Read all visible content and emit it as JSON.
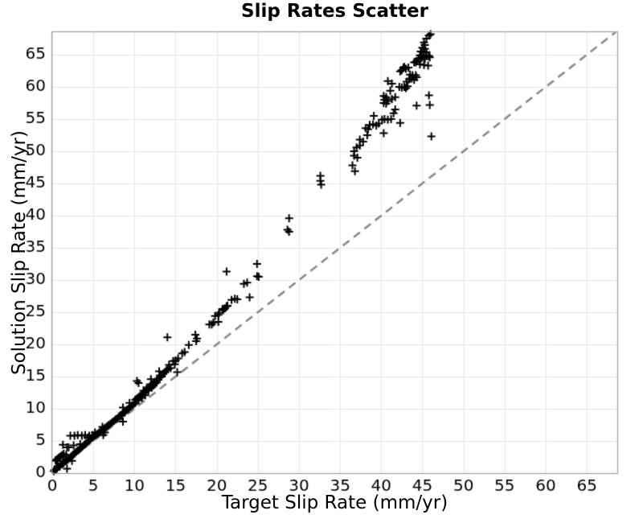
{
  "colors": {
    "background": "#ffffff",
    "grid": "#e7e7e7",
    "spine": "#9e9e9e",
    "identity_line": "#8a8a8a",
    "marker": "#000000",
    "text": "#000000"
  },
  "chart_data": {
    "type": "scatter",
    "title": "Slip Rates Scatter",
    "xlabel": "Target Slip Rate (mm/yr)",
    "ylabel": "Solution Slip Rate (mm/yr)",
    "xlim": [
      0,
      68.7
    ],
    "ylim": [
      0,
      68.5
    ],
    "xticks": [
      0,
      5,
      10,
      15,
      20,
      25,
      30,
      35,
      40,
      45,
      50,
      55,
      60,
      65
    ],
    "yticks": [
      0,
      5,
      10,
      15,
      20,
      25,
      30,
      35,
      40,
      45,
      50,
      55,
      60,
      65
    ],
    "grid": true,
    "legend": "none",
    "marker": "plus",
    "reference_line": {
      "kind": "y=x",
      "style": "dashed",
      "color": "#8a8a8a",
      "from": [
        0,
        0
      ],
      "to": [
        68.5,
        68.5
      ]
    },
    "points": [
      [
        0.2,
        0.3
      ],
      [
        0.3,
        0.5
      ],
      [
        0.5,
        0.6
      ],
      [
        0.6,
        0.8
      ],
      [
        0.7,
        1.1
      ],
      [
        0.9,
        1.0
      ],
      [
        1.0,
        1.3
      ],
      [
        1.2,
        1.4
      ],
      [
        1.4,
        1.6
      ],
      [
        1.5,
        1.8
      ],
      [
        1.7,
        1.9
      ],
      [
        1.9,
        2.1
      ],
      [
        2.1,
        2.3
      ],
      [
        2.3,
        2.5
      ],
      [
        2.5,
        2.8
      ],
      [
        0.4,
        2.0
      ],
      [
        0.5,
        1.9
      ],
      [
        0.6,
        2.2
      ],
      [
        0.8,
        2.4
      ],
      [
        1.0,
        2.6
      ],
      [
        1.2,
        2.8
      ],
      [
        1.4,
        3.0
      ],
      [
        1.3,
        2.6
      ],
      [
        1.7,
        2.8
      ],
      [
        2.4,
        1.9
      ],
      [
        1.8,
        0.7
      ],
      [
        1.3,
        4.4
      ],
      [
        1.8,
        4.0
      ],
      [
        2.0,
        4.0
      ],
      [
        2.6,
        4.3
      ],
      [
        2.2,
        5.8
      ],
      [
        2.7,
        5.8
      ],
      [
        3.1,
        5.9
      ],
      [
        3.6,
        5.8
      ],
      [
        4.0,
        5.9
      ],
      [
        4.5,
        5.8
      ],
      [
        4.9,
        5.9
      ],
      [
        2.7,
        3.1
      ],
      [
        2.9,
        3.3
      ],
      [
        3.1,
        3.5
      ],
      [
        3.3,
        3.7
      ],
      [
        3.5,
        3.9
      ],
      [
        3.7,
        4.2
      ],
      [
        3.9,
        4.4
      ],
      [
        4.1,
        4.6
      ],
      [
        4.3,
        4.9
      ],
      [
        4.5,
        5.1
      ],
      [
        4.7,
        5.3
      ],
      [
        4.9,
        5.5
      ],
      [
        5.1,
        5.7
      ],
      [
        5.3,
        5.9
      ],
      [
        5.5,
        6.1
      ],
      [
        5.7,
        6.3
      ],
      [
        5.9,
        6.5
      ],
      [
        6.1,
        6.7
      ],
      [
        6.3,
        6.9
      ],
      [
        3.4,
        4.5
      ],
      [
        4.3,
        5.5
      ],
      [
        5.2,
        6.3
      ],
      [
        6.4,
        6.3
      ],
      [
        6.1,
        7.2
      ],
      [
        6.2,
        5.9
      ],
      [
        6.5,
        7.1
      ],
      [
        6.7,
        7.3
      ],
      [
        6.9,
        7.5
      ],
      [
        7.1,
        7.7
      ],
      [
        7.3,
        7.9
      ],
      [
        7.5,
        8.1
      ],
      [
        7.7,
        8.3
      ],
      [
        7.9,
        8.5
      ],
      [
        8.1,
        8.8
      ],
      [
        8.3,
        9.0
      ],
      [
        8.5,
        9.2
      ],
      [
        8.7,
        9.4
      ],
      [
        8.9,
        9.6
      ],
      [
        9.1,
        9.8
      ],
      [
        9.3,
        10.0
      ],
      [
        9.5,
        10.3
      ],
      [
        9.7,
        10.5
      ],
      [
        9.9,
        10.7
      ],
      [
        8.4,
        8.9
      ],
      [
        8.6,
        8.0
      ],
      [
        8.6,
        10.2
      ],
      [
        9.4,
        10.9
      ],
      [
        10.1,
        10.9
      ],
      [
        10.1,
        11.4
      ],
      [
        10.3,
        11.6
      ],
      [
        10.5,
        11.3
      ],
      [
        10.5,
        11.8
      ],
      [
        10.7,
        12.0
      ],
      [
        10.9,
        11.7
      ],
      [
        10.9,
        12.2
      ],
      [
        11.1,
        12.4
      ],
      [
        11.1,
        12.8
      ],
      [
        11.3,
        12.1
      ],
      [
        11.3,
        12.6
      ],
      [
        11.5,
        13.0
      ],
      [
        11.5,
        13.3
      ],
      [
        11.7,
        12.8
      ],
      [
        11.7,
        13.2
      ],
      [
        11.9,
        13.5
      ],
      [
        12.1,
        13.3
      ],
      [
        12.1,
        13.8
      ],
      [
        12.3,
        13.6
      ],
      [
        12.3,
        14.0
      ],
      [
        12.5,
        13.9
      ],
      [
        12.5,
        14.2
      ],
      [
        12.7,
        14.1
      ],
      [
        12.7,
        14.4
      ],
      [
        12.9,
        14.6
      ],
      [
        13.1,
        14.9
      ],
      [
        13.1,
        15.2
      ],
      [
        13.3,
        15.0
      ],
      [
        13.5,
        15.4
      ],
      [
        13.7,
        15.7
      ],
      [
        13.9,
        16.0
      ],
      [
        14.1,
        16.2
      ],
      [
        10.5,
        14.0
      ],
      [
        10.3,
        14.3
      ],
      [
        12.0,
        14.6
      ],
      [
        13.0,
        15.8
      ],
      [
        14.0,
        21.1
      ],
      [
        14.2,
        16.8
      ],
      [
        14.4,
        16.3
      ],
      [
        14.7,
        17.4
      ],
      [
        14.9,
        16.9
      ],
      [
        15.0,
        17.5
      ],
      [
        15.3,
        17.8
      ],
      [
        15.2,
        15.7
      ],
      [
        15.8,
        18.6
      ],
      [
        16.1,
        18.8
      ],
      [
        16.6,
        19.9
      ],
      [
        17.4,
        21.5
      ],
      [
        17.6,
        20.9
      ],
      [
        17.5,
        20.5
      ],
      [
        19.1,
        23.1
      ],
      [
        19.4,
        23.1
      ],
      [
        19.6,
        23.4
      ],
      [
        20.2,
        23.5
      ],
      [
        19.8,
        24.4
      ],
      [
        20.2,
        24.6
      ],
      [
        20.3,
        24.9
      ],
      [
        20.7,
        25.5
      ],
      [
        20.8,
        25.3
      ],
      [
        21.0,
        25.6
      ],
      [
        21.2,
        25.9
      ],
      [
        21.3,
        26.0
      ],
      [
        21.8,
        26.9
      ],
      [
        22.2,
        27.1
      ],
      [
        22.5,
        27.0
      ],
      [
        24.0,
        27.3
      ],
      [
        23.3,
        29.4
      ],
      [
        23.7,
        29.6
      ],
      [
        24.9,
        30.6
      ],
      [
        25.1,
        30.5
      ],
      [
        24.9,
        32.5
      ],
      [
        21.2,
        31.3
      ],
      [
        28.6,
        37.8
      ],
      [
        28.8,
        37.5
      ],
      [
        28.8,
        39.6
      ],
      [
        32.6,
        46.2
      ],
      [
        32.6,
        45.4
      ],
      [
        32.7,
        44.8
      ],
      [
        36.5,
        47.8
      ],
      [
        36.8,
        46.9
      ],
      [
        36.7,
        49.3
      ],
      [
        37.1,
        49.0
      ],
      [
        36.7,
        50.0
      ],
      [
        37.0,
        50.6
      ],
      [
        37.4,
        50.9
      ],
      [
        37.4,
        51.8
      ],
      [
        37.8,
        51.5
      ],
      [
        38.3,
        52.5
      ],
      [
        38.1,
        53.6
      ],
      [
        38.4,
        53.4
      ],
      [
        38.6,
        54.1
      ],
      [
        39.0,
        54.2
      ],
      [
        39.4,
        54.0
      ],
      [
        39.7,
        54.3
      ],
      [
        40.1,
        54.9
      ],
      [
        40.4,
        55.0
      ],
      [
        40.8,
        54.9
      ],
      [
        41.2,
        55.0
      ],
      [
        39.1,
        55.5
      ],
      [
        40.3,
        52.8
      ],
      [
        42.3,
        54.4
      ],
      [
        41.5,
        55.9
      ],
      [
        41.7,
        56.5
      ],
      [
        40.3,
        57.5
      ],
      [
        40.6,
        57.4
      ],
      [
        40.4,
        58.0
      ],
      [
        40.8,
        57.8
      ],
      [
        40.3,
        58.6
      ],
      [
        40.6,
        58.4
      ],
      [
        41.3,
        58.1
      ],
      [
        41.7,
        58.4
      ],
      [
        41.1,
        59.4
      ],
      [
        41.3,
        60.5
      ],
      [
        40.8,
        60.9
      ],
      [
        42.2,
        60.0
      ],
      [
        42.5,
        59.9
      ],
      [
        42.8,
        60.0
      ],
      [
        43.2,
        60.1
      ],
      [
        43.0,
        59.8
      ],
      [
        43.1,
        60.8
      ],
      [
        43.4,
        61.2
      ],
      [
        42.3,
        62.4
      ],
      [
        42.5,
        62.6
      ],
      [
        42.7,
        63.0
      ],
      [
        42.8,
        63.1
      ],
      [
        43.0,
        62.8
      ],
      [
        43.3,
        63.0
      ],
      [
        43.5,
        61.9
      ],
      [
        43.8,
        61.8
      ],
      [
        44.2,
        61.8
      ],
      [
        43.7,
        61.3
      ],
      [
        44.0,
        61.1
      ],
      [
        44.3,
        61.5
      ],
      [
        44.0,
        63.8
      ],
      [
        44.2,
        63.8
      ],
      [
        44.3,
        64.0
      ],
      [
        44.7,
        63.5
      ],
      [
        45.2,
        63.4
      ],
      [
        45.7,
        63.3
      ],
      [
        44.5,
        64.4
      ],
      [
        44.8,
        64.3
      ],
      [
        45.3,
        64.3
      ],
      [
        44.7,
        64.9
      ],
      [
        45.0,
        64.6
      ],
      [
        45.5,
        64.9
      ],
      [
        45.8,
        64.8
      ],
      [
        45.9,
        64.6
      ],
      [
        44.8,
        65.5
      ],
      [
        45.2,
        65.3
      ],
      [
        45.5,
        65.4
      ],
      [
        45.3,
        65.9
      ],
      [
        45.0,
        66.1
      ],
      [
        45.3,
        66.5
      ],
      [
        45.2,
        66.9
      ],
      [
        45.5,
        67.5
      ],
      [
        45.8,
        68.0
      ],
      [
        46.0,
        68.2
      ],
      [
        44.3,
        57.1
      ],
      [
        45.8,
        58.7
      ],
      [
        45.9,
        57.2
      ],
      [
        46.1,
        52.3
      ]
    ]
  }
}
